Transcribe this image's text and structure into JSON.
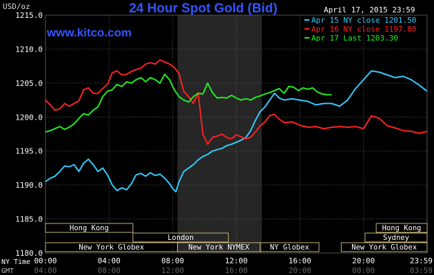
{
  "chart_data": {
    "type": "line",
    "title": "24 Hour Spot Gold (Bid)",
    "units": "USD/oz",
    "date_label": "April 17, 2015 23:59",
    "brand": "www.kitco.com",
    "ylim": [
      1180,
      1215
    ],
    "y_ticks": [
      {
        "value": 1215,
        "label": "1215.0"
      },
      {
        "value": 1210,
        "label": "1210.0"
      },
      {
        "value": 1205,
        "label": "1205.0"
      },
      {
        "value": 1200,
        "label": "1200.0"
      },
      {
        "value": 1195,
        "label": "1195.0"
      },
      {
        "value": 1190,
        "label": "1190.0"
      },
      {
        "value": 1185,
        "label": "1185.0"
      },
      {
        "value": 1180,
        "label": "1180.0"
      }
    ],
    "xlim": [
      0,
      24
    ],
    "x_ticks_ny": [
      {
        "hour": 0,
        "label": "00:00"
      },
      {
        "hour": 4,
        "label": "04:00"
      },
      {
        "hour": 8,
        "label": "08:00"
      },
      {
        "hour": 12,
        "label": "12:00"
      },
      {
        "hour": 16,
        "label": "16:00"
      },
      {
        "hour": 20,
        "label": "20:00"
      },
      {
        "hour": 24,
        "label": "23:59"
      }
    ],
    "x_ticks_gmt": [
      {
        "hour": 0,
        "label": "04:00"
      },
      {
        "hour": 4,
        "label": "08:00"
      },
      {
        "hour": 8,
        "label": "12:00"
      },
      {
        "hour": 12,
        "label": "16:00"
      },
      {
        "hour": 16,
        "label": "20:00"
      },
      {
        "hour": 20,
        "label": "00:00"
      },
      {
        "hour": 24,
        "label": "03:59"
      }
    ],
    "x_axis_labels": [
      "NY Time",
      "GMT"
    ],
    "highlight_range": [
      8.3,
      13.6
    ],
    "legend": {
      "position": "top-right",
      "entries": [
        {
          "text": "Apr 15 NY close 1201.50",
          "color": "#33ccff"
        },
        {
          "text": "Apr 16 NY close 1197.80",
          "color": "#ff2222"
        },
        {
          "text": "Apr 17 Last 1203.30",
          "color": "#22ee22"
        }
      ]
    },
    "sessions": [
      {
        "label": "Hong Kong",
        "start": 0.0,
        "end": 5.5,
        "row": 0
      },
      {
        "label": "Hong Kong",
        "start": 20.8,
        "end": 24.0,
        "row": 0
      },
      {
        "label": "London",
        "start": 5.5,
        "end": 11.5,
        "row": 1
      },
      {
        "label": "Sydney",
        "start": 20.1,
        "end": 24.0,
        "row": 1
      },
      {
        "label": "New York Globex",
        "start": 0.0,
        "end": 8.3,
        "row": 2
      },
      {
        "label": "New York NYMEX",
        "start": 8.3,
        "end": 13.5,
        "row": 2
      },
      {
        "label": "NY Globex",
        "start": 13.5,
        "end": 17.2,
        "row": 2
      },
      {
        "label": "New York Globex",
        "start": 18.6,
        "end": 24.0,
        "row": 2
      }
    ],
    "series": [
      {
        "name": "Apr 15 NY close 1201.50",
        "color": "#33ccff",
        "x": [
          0,
          0.3,
          0.6,
          0.9,
          1.2,
          1.5,
          1.8,
          2.1,
          2.4,
          2.7,
          3.0,
          3.3,
          3.6,
          3.9,
          4.2,
          4.5,
          4.8,
          5.1,
          5.4,
          5.7,
          6.0,
          6.3,
          6.6,
          6.9,
          7.2,
          7.5,
          7.8,
          8.0,
          8.2,
          8.4,
          8.7,
          9.0,
          9.3,
          9.6,
          9.9,
          10.2,
          10.5,
          10.8,
          11.1,
          11.4,
          11.7,
          12.0,
          12.3,
          12.6,
          12.9,
          13.2,
          13.5,
          13.8,
          14.1,
          14.4,
          14.7,
          15.0,
          15.5,
          16.0,
          16.5,
          17.0,
          17.5,
          18.0,
          18.5,
          19.0,
          19.5,
          20.0,
          20.5,
          21.0,
          21.5,
          22.0,
          22.5,
          23.0,
          23.5,
          24.0
        ],
        "y": [
          1190.5,
          1191.0,
          1191.3,
          1192.0,
          1192.8,
          1192.7,
          1193.0,
          1192.0,
          1193.2,
          1193.8,
          1193.0,
          1192.0,
          1192.5,
          1191.5,
          1190.0,
          1189.2,
          1189.6,
          1189.3,
          1190.2,
          1191.5,
          1191.7,
          1191.3,
          1191.8,
          1191.4,
          1191.6,
          1191.0,
          1190.2,
          1189.5,
          1189.0,
          1190.5,
          1192.0,
          1192.5,
          1193.0,
          1193.7,
          1194.2,
          1194.5,
          1195.0,
          1195.2,
          1195.4,
          1195.8,
          1196.0,
          1196.3,
          1196.6,
          1197.0,
          1198.0,
          1199.5,
          1200.8,
          1201.5,
          1202.5,
          1203.5,
          1202.8,
          1202.5,
          1202.7,
          1202.5,
          1202.3,
          1201.8,
          1202.0,
          1202.0,
          1201.6,
          1202.5,
          1204.2,
          1205.5,
          1206.8,
          1206.6,
          1206.2,
          1205.8,
          1206.0,
          1205.5,
          1204.7,
          1203.8
        ]
      },
      {
        "name": "Apr 16 NY close 1197.80",
        "color": "#ff2222",
        "x": [
          0,
          0.3,
          0.6,
          0.9,
          1.2,
          1.5,
          1.8,
          2.1,
          2.4,
          2.7,
          3.0,
          3.3,
          3.6,
          3.9,
          4.2,
          4.5,
          4.8,
          5.1,
          5.4,
          5.7,
          6.0,
          6.3,
          6.6,
          6.9,
          7.2,
          7.5,
          7.8,
          8.1,
          8.4,
          8.7,
          9.0,
          9.3,
          9.6,
          9.9,
          10.2,
          10.5,
          10.8,
          11.1,
          11.4,
          11.7,
          12.0,
          12.3,
          12.6,
          12.9,
          13.2,
          13.5,
          13.8,
          14.1,
          14.4,
          14.7,
          15.0,
          15.5,
          16.0,
          16.5,
          17.0,
          17.5,
          18.0,
          18.5,
          19.0,
          19.5,
          20.0,
          20.5,
          21.0,
          21.5,
          22.0,
          22.5,
          23.0,
          23.5,
          24.0
        ],
        "y": [
          1202.5,
          1201.8,
          1201.0,
          1201.2,
          1202.0,
          1201.6,
          1202.0,
          1202.4,
          1204.0,
          1204.3,
          1203.5,
          1203.5,
          1204.2,
          1204.8,
          1206.5,
          1206.8,
          1206.2,
          1206.3,
          1206.7,
          1207.0,
          1207.2,
          1207.8,
          1208.0,
          1207.8,
          1208.4,
          1208.1,
          1207.8,
          1207.3,
          1206.4,
          1203.8,
          1203.0,
          1202.0,
          1203.6,
          1197.5,
          1196.0,
          1197.0,
          1197.2,
          1197.5,
          1197.0,
          1196.8,
          1197.4,
          1197.1,
          1196.8,
          1197.0,
          1197.8,
          1198.7,
          1199.3,
          1200.2,
          1200.4,
          1199.7,
          1199.2,
          1199.3,
          1198.8,
          1198.5,
          1198.6,
          1198.3,
          1198.5,
          1198.6,
          1198.5,
          1198.6,
          1198.3,
          1200.2,
          1199.8,
          1198.7,
          1198.4,
          1198.0,
          1197.9,
          1197.6,
          1197.9
        ]
      },
      {
        "name": "Apr 17 Last 1203.30",
        "color": "#22ee22",
        "x": [
          0,
          0.3,
          0.6,
          0.9,
          1.2,
          1.5,
          1.8,
          2.1,
          2.4,
          2.7,
          3.0,
          3.3,
          3.6,
          3.9,
          4.2,
          4.5,
          4.8,
          5.1,
          5.4,
          5.7,
          6.0,
          6.3,
          6.6,
          6.9,
          7.2,
          7.5,
          7.8,
          8.1,
          8.4,
          8.7,
          9.0,
          9.3,
          9.6,
          9.9,
          10.2,
          10.5,
          10.8,
          11.1,
          11.4,
          11.7,
          12.0,
          12.3,
          12.6,
          12.9,
          13.2,
          13.5,
          13.8,
          14.1,
          14.4,
          14.7,
          15.0,
          15.3,
          15.6,
          15.9,
          16.2,
          16.5,
          16.8,
          17.1,
          17.4,
          17.7,
          18.0
        ],
        "y": [
          1197.8,
          1198.0,
          1198.3,
          1198.6,
          1198.2,
          1198.5,
          1199.0,
          1199.8,
          1200.5,
          1200.3,
          1201.0,
          1201.5,
          1203.0,
          1203.8,
          1204.0,
          1204.8,
          1204.5,
          1205.2,
          1205.0,
          1205.5,
          1205.8,
          1205.2,
          1205.8,
          1205.5,
          1205.0,
          1206.3,
          1205.5,
          1204.0,
          1203.0,
          1202.5,
          1202.2,
          1203.0,
          1203.5,
          1203.4,
          1205.0,
          1203.6,
          1202.8,
          1202.9,
          1202.8,
          1203.2,
          1202.8,
          1202.5,
          1202.7,
          1202.5,
          1202.9,
          1203.1,
          1203.4,
          1203.6,
          1203.9,
          1204.2,
          1203.5,
          1204.5,
          1204.4,
          1203.9,
          1204.3,
          1204.1,
          1204.3,
          1203.7,
          1203.4,
          1203.3,
          1203.3
        ]
      }
    ]
  }
}
